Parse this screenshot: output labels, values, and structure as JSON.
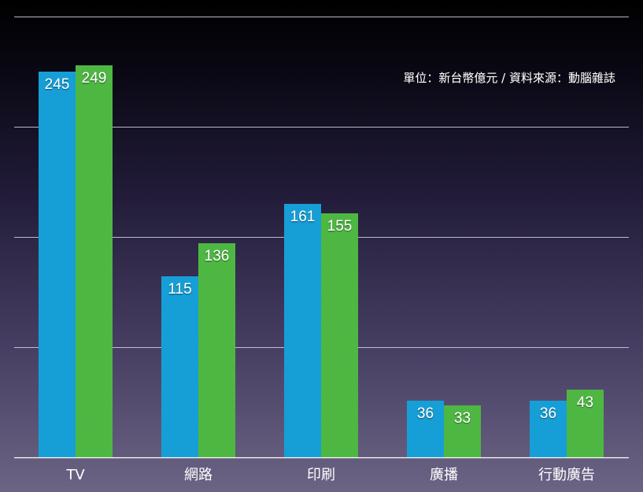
{
  "chart_data": {
    "type": "bar",
    "title": "",
    "xlabel": "",
    "ylabel": "",
    "note": "單位：新台幣億元 / 資料來源：動腦雜誌",
    "categories": [
      "TV",
      "網路",
      "印刷",
      "廣播",
      "行動廣告"
    ],
    "series": [
      {
        "values": [
          245,
          115,
          161,
          36,
          36
        ],
        "color": "#1aa6e0"
      },
      {
        "values": [
          249,
          136,
          155,
          33,
          43
        ],
        "color": "#52bf46"
      }
    ],
    "ylim": [
      0,
      280
    ],
    "yticks": [
      0,
      70,
      140,
      210,
      280
    ],
    "grid": true,
    "legend": "none"
  }
}
